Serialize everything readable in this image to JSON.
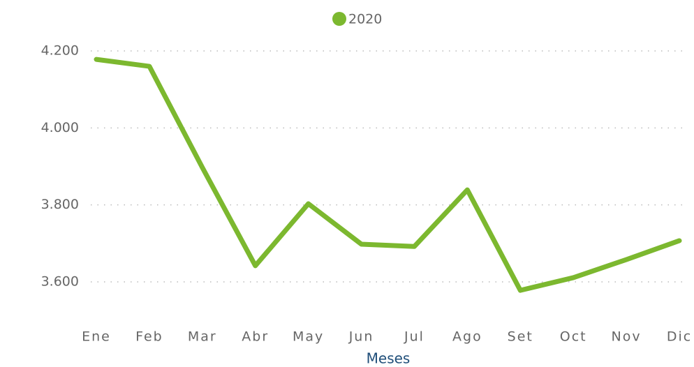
{
  "chart_data": {
    "type": "line",
    "x_label": "Meses",
    "legend": "top",
    "categories": [
      "Ene",
      "Feb",
      "Mar",
      "Abr",
      "May",
      "Jun",
      "Jul",
      "Ago",
      "Set",
      "Oct",
      "Nov",
      "Dic"
    ],
    "series": [
      {
        "name": "2020",
        "color": "#7cb82f",
        "values": [
          4178,
          4160,
          3897,
          3642,
          3803,
          3698,
          3692,
          3839,
          3578,
          3611,
          3658,
          3707
        ]
      }
    ],
    "ylim": [
      3550,
      4250
    ],
    "yticks": [
      {
        "value": 3600,
        "label": "3.600"
      },
      {
        "value": 3800,
        "label": "3.800"
      },
      {
        "value": 4000,
        "label": "4.000"
      },
      {
        "value": 4200,
        "label": "4.200"
      }
    ],
    "grid": true
  }
}
